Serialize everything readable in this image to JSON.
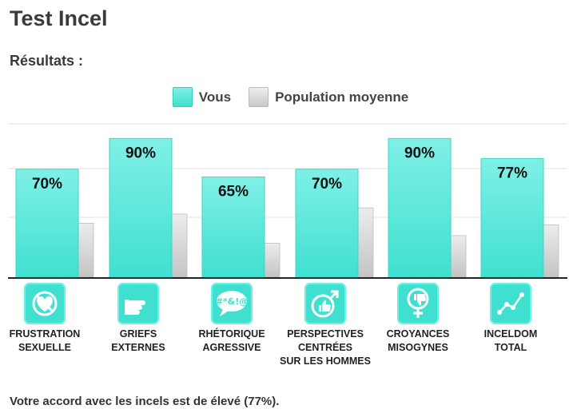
{
  "page": {
    "title": "Test Incel",
    "subtitle": "Résultats :",
    "footer": "Votre accord avec les incels est de élevé (77%)."
  },
  "legend": {
    "you_label": "Vous",
    "population_label": "Population moyenne"
  },
  "colors": {
    "you": "#40e0d0",
    "population": "#c8c8c8",
    "icon_bg": "#40e0d0"
  },
  "chart_data": {
    "type": "bar",
    "categories": [
      "FRUSTRATION\nSEXUELLE",
      "GRIEFS\nEXTERNES",
      "RHÉTORIQUE\nAGRESSIVE",
      "PERSPECTIVES\nCENTRÉES\nSUR LES HOMMES",
      "CROYANCES\nMISOGYNES",
      "INCELDOM\nTOTAL"
    ],
    "series": [
      {
        "name": "Vous",
        "values": [
          70,
          90,
          65,
          70,
          90,
          77
        ],
        "labels": [
          "70%",
          "90%",
          "65%",
          "70%",
          "90%",
          "77%"
        ]
      },
      {
        "name": "Population moyenne",
        "values": [
          35,
          41,
          22,
          45,
          27,
          34
        ]
      }
    ],
    "ylim": [
      0,
      100
    ],
    "grid": true,
    "legend_position": "top-center",
    "icons": [
      "no-heart-icon",
      "pointing-hand-icon",
      "speech-bubble-icon",
      "male-thumbs-up-icon",
      "female-thumbs-down-icon",
      "line-graph-icon"
    ]
  }
}
